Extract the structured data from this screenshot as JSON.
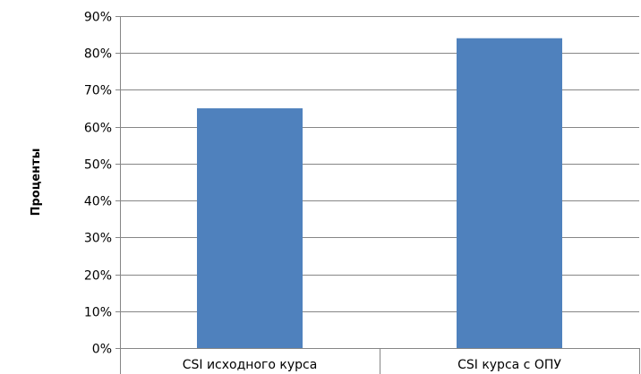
{
  "chart_data": {
    "type": "bar",
    "title": "",
    "xlabel": "",
    "ylabel": "Проценты",
    "categories": [
      "CSI исходного курса",
      "CSI курса с ОПУ"
    ],
    "values": [
      65,
      84
    ],
    "ylim": [
      0,
      90
    ],
    "yticks": [
      0,
      10,
      20,
      30,
      40,
      50,
      60,
      70,
      80,
      90
    ],
    "ytick_labels": [
      "0%",
      "10%",
      "20%",
      "30%",
      "40%",
      "50%",
      "60%",
      "70%",
      "80%",
      "90%"
    ],
    "grid": true,
    "legend": "none",
    "bar_color": "#4f81bd",
    "grid_color": "#868686"
  }
}
